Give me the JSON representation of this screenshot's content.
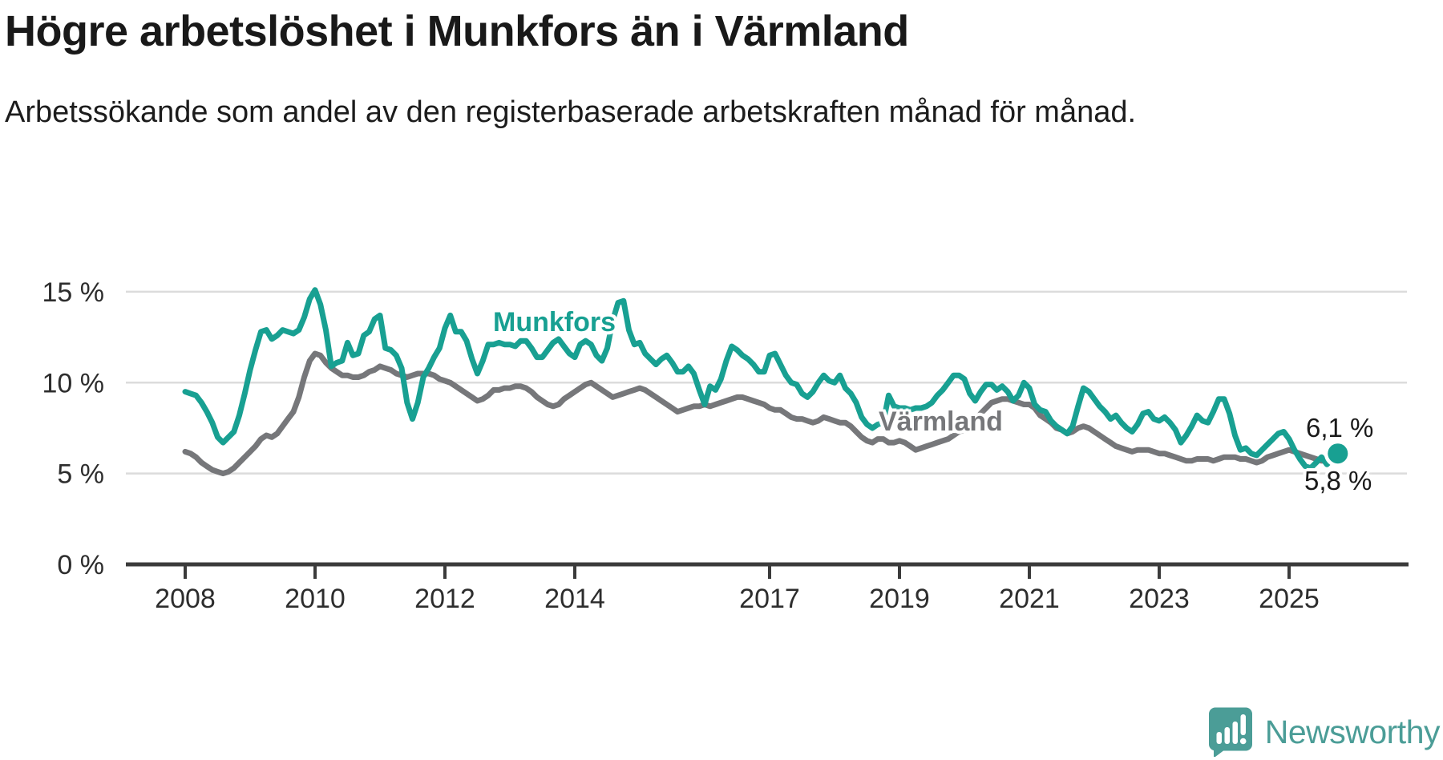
{
  "header": {
    "title": "Högre arbetslöshet i Munkfors än i Värmland",
    "subtitle": "Arbetssökande som andel av den registerbaserade arbetskraften månad för månad."
  },
  "chart_data": {
    "type": "line",
    "title": "Högre arbetslöshet i Munkfors än i Värmland",
    "ylabel": "Arbetssökande som andel av den registerbaserade arbetskraften",
    "unit": "%",
    "xlim": [
      2008,
      2026.2
    ],
    "ylim": [
      0,
      16
    ],
    "grid": "horizontal",
    "legend_position": "inline-labels",
    "x_start": "2008-01",
    "x_end": "2025-10",
    "frequency": "monthly",
    "x_ticks": [
      {
        "label": "2008",
        "year": 2008
      },
      {
        "label": "2010",
        "year": 2010
      },
      {
        "label": "2012",
        "year": 2012
      },
      {
        "label": "2014",
        "year": 2014
      },
      {
        "label": "2017",
        "year": 2017
      },
      {
        "label": "2019",
        "year": 2019
      },
      {
        "label": "2021",
        "year": 2021
      },
      {
        "label": "2023",
        "year": 2023
      },
      {
        "label": "2025",
        "year": 2025
      }
    ],
    "y_ticks": [
      {
        "label": "0 %",
        "value": 0
      },
      {
        "label": "5 %",
        "value": 5
      },
      {
        "label": "10 %",
        "value": 10
      },
      {
        "label": "15 %",
        "value": 15
      }
    ],
    "series": [
      {
        "name": "Munkfors",
        "color": "#18a092",
        "end_label": "6,1 %",
        "last_value": 6.1,
        "values": [
          9.5,
          9.4,
          9.3,
          8.9,
          8.4,
          7.8,
          7.0,
          6.7,
          7.0,
          7.3,
          8.2,
          9.4,
          10.7,
          11.8,
          12.8,
          12.9,
          12.4,
          12.6,
          12.9,
          12.8,
          12.7,
          12.9,
          13.6,
          14.6,
          15.1,
          14.3,
          12.9,
          10.9,
          11.1,
          11.2,
          12.2,
          11.5,
          11.6,
          12.6,
          12.8,
          13.5,
          13.7,
          11.9,
          11.8,
          11.5,
          10.8,
          8.9,
          8.0,
          8.9,
          10.3,
          10.8,
          11.4,
          11.9,
          13.0,
          13.7,
          12.8,
          12.8,
          12.3,
          11.3,
          10.5,
          11.2,
          12.1,
          12.1,
          12.2,
          12.1,
          12.1,
          12.0,
          12.3,
          12.3,
          11.9,
          11.4,
          11.4,
          11.8,
          12.2,
          12.4,
          12.0,
          11.6,
          11.4,
          12.1,
          12.3,
          12.1,
          11.5,
          11.2,
          11.9,
          13.4,
          14.4,
          14.5,
          12.9,
          12.1,
          12.2,
          11.6,
          11.3,
          11.0,
          11.3,
          11.5,
          11.1,
          10.6,
          10.6,
          10.9,
          10.5,
          9.6,
          8.8,
          9.8,
          9.6,
          10.2,
          11.2,
          12.0,
          11.8,
          11.5,
          11.3,
          11.0,
          10.6,
          10.6,
          11.5,
          11.6,
          11.0,
          10.4,
          10.0,
          9.9,
          9.4,
          9.2,
          9.5,
          10.0,
          10.4,
          10.1,
          10.0,
          10.4,
          9.7,
          9.4,
          8.9,
          8.1,
          7.7,
          7.5,
          7.7,
          7.8,
          9.3,
          8.7,
          8.6,
          8.6,
          8.5,
          8.6,
          8.6,
          8.7,
          8.9,
          9.3,
          9.6,
          10.0,
          10.4,
          10.4,
          10.2,
          9.4,
          9.0,
          9.5,
          9.9,
          9.9,
          9.6,
          9.8,
          9.5,
          9.0,
          9.3,
          10.0,
          9.7,
          8.8,
          8.5,
          8.4,
          7.9,
          7.6,
          7.4,
          7.2,
          7.6,
          8.7,
          9.7,
          9.5,
          9.1,
          8.7,
          8.4,
          8.0,
          8.2,
          7.8,
          7.5,
          7.3,
          7.7,
          8.3,
          8.4,
          8.0,
          7.9,
          8.1,
          7.8,
          7.4,
          6.7,
          7.1,
          7.6,
          8.2,
          7.9,
          7.8,
          8.4,
          9.1,
          9.1,
          8.3,
          7.1,
          6.3,
          6.4,
          6.1,
          6.0,
          6.3,
          6.6,
          6.9,
          7.2,
          7.3,
          6.9,
          6.3,
          5.8,
          5.4,
          5.3,
          5.6,
          5.9,
          5.5,
          5.8,
          6.1
        ]
      },
      {
        "name": "Värmland",
        "color": "#76777a",
        "end_label": "5,8 %",
        "last_value": 5.8,
        "values": [
          6.2,
          6.1,
          5.9,
          5.6,
          5.4,
          5.2,
          5.1,
          5.0,
          5.1,
          5.3,
          5.6,
          5.9,
          6.2,
          6.5,
          6.9,
          7.1,
          7.0,
          7.2,
          7.6,
          8.0,
          8.4,
          9.2,
          10.3,
          11.2,
          11.6,
          11.5,
          11.1,
          10.8,
          10.6,
          10.4,
          10.4,
          10.3,
          10.3,
          10.4,
          10.6,
          10.7,
          10.9,
          10.8,
          10.7,
          10.5,
          10.4,
          10.3,
          10.4,
          10.5,
          10.5,
          10.5,
          10.4,
          10.2,
          10.1,
          10.0,
          9.8,
          9.6,
          9.4,
          9.2,
          9.0,
          9.1,
          9.3,
          9.6,
          9.6,
          9.7,
          9.7,
          9.8,
          9.8,
          9.7,
          9.5,
          9.2,
          9.0,
          8.8,
          8.7,
          8.8,
          9.1,
          9.3,
          9.5,
          9.7,
          9.9,
          10.0,
          9.8,
          9.6,
          9.4,
          9.2,
          9.3,
          9.4,
          9.5,
          9.6,
          9.7,
          9.6,
          9.4,
          9.2,
          9.0,
          8.8,
          8.6,
          8.4,
          8.5,
          8.6,
          8.7,
          8.7,
          8.8,
          8.7,
          8.8,
          8.9,
          9.0,
          9.1,
          9.2,
          9.2,
          9.1,
          9.0,
          8.9,
          8.8,
          8.6,
          8.5,
          8.5,
          8.3,
          8.1,
          8.0,
          8.0,
          7.9,
          7.8,
          7.9,
          8.1,
          8.0,
          7.9,
          7.8,
          7.8,
          7.6,
          7.3,
          7.0,
          6.8,
          6.7,
          6.9,
          6.9,
          6.7,
          6.7,
          6.8,
          6.7,
          6.5,
          6.3,
          6.4,
          6.5,
          6.6,
          6.7,
          6.8,
          6.9,
          7.1,
          7.3,
          7.4,
          7.6,
          7.9,
          8.3,
          8.6,
          8.9,
          9.0,
          9.1,
          9.1,
          9.0,
          8.9,
          8.8,
          8.8,
          8.6,
          8.2,
          8.0,
          7.8,
          7.5,
          7.4,
          7.2,
          7.3,
          7.5,
          7.6,
          7.5,
          7.3,
          7.1,
          6.9,
          6.7,
          6.5,
          6.4,
          6.3,
          6.2,
          6.3,
          6.3,
          6.3,
          6.2,
          6.1,
          6.1,
          6.0,
          5.9,
          5.8,
          5.7,
          5.7,
          5.8,
          5.8,
          5.8,
          5.7,
          5.8,
          5.9,
          5.9,
          5.9,
          5.8,
          5.8,
          5.7,
          5.6,
          5.7,
          5.9,
          6.0,
          6.1,
          6.2,
          6.3,
          6.2,
          6.1,
          6.0,
          5.9,
          5.8,
          5.7,
          5.7,
          5.7,
          5.8
        ]
      }
    ]
  },
  "branding": {
    "logo_text": "Newsworthy",
    "logo_color": "#4b9d97",
    "icon": "bar-chart-speech-bubble-icon"
  },
  "colors": {
    "background": "#ffffff",
    "munkfors_line": "#18a092",
    "varmland_line": "#76777a",
    "gridline": "#dcdcdc",
    "axis": "#3b3b3b",
    "text": "#191919"
  }
}
